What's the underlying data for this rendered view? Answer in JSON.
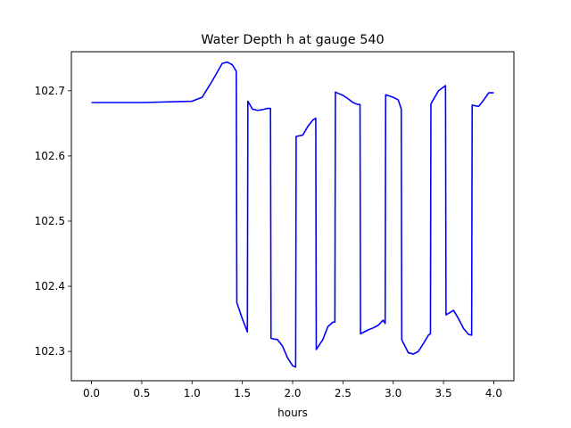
{
  "chart_data": {
    "type": "line",
    "title": "Water Depth h at gauge 540",
    "xlabel": "hours",
    "ylabel": "",
    "xlim": [
      -0.2,
      4.2
    ],
    "ylim": [
      102.255,
      102.76
    ],
    "xticks": [
      0.0,
      0.5,
      1.0,
      1.5,
      2.0,
      2.5,
      3.0,
      3.5,
      4.0
    ],
    "xtick_labels": [
      "0.0",
      "0.5",
      "1.0",
      "1.5",
      "2.0",
      "2.5",
      "3.0",
      "3.5",
      "4.0"
    ],
    "yticks": [
      102.3,
      102.4,
      102.5,
      102.6,
      102.7
    ],
    "ytick_labels": [
      "102.3",
      "102.4",
      "102.5",
      "102.6",
      "102.7"
    ],
    "grid": false,
    "series": [
      {
        "color": "#0000ff",
        "x": [
          0.0,
          0.5,
          1.0,
          1.1,
          1.2,
          1.3,
          1.35,
          1.4,
          1.44,
          1.445,
          1.5,
          1.55,
          1.555,
          1.6,
          1.65,
          1.7,
          1.75,
          1.78,
          1.785,
          1.85,
          1.9,
          1.95,
          2.0,
          2.03,
          2.035,
          2.1,
          2.15,
          2.2,
          2.23,
          2.235,
          2.3,
          2.35,
          2.4,
          2.42,
          2.425,
          2.5,
          2.55,
          2.6,
          2.65,
          2.67,
          2.675,
          2.75,
          2.8,
          2.85,
          2.9,
          2.92,
          2.925,
          3.0,
          3.05,
          3.08,
          3.085,
          3.15,
          3.2,
          3.25,
          3.3,
          3.35,
          3.37,
          3.375,
          3.45,
          3.52,
          3.525,
          3.6,
          3.65,
          3.7,
          3.75,
          3.78,
          3.785,
          3.85,
          3.9,
          3.95,
          4.0
        ],
        "y": [
          102.682,
          102.682,
          102.684,
          102.69,
          102.715,
          102.742,
          102.744,
          102.74,
          102.73,
          102.375,
          102.35,
          102.33,
          102.684,
          102.672,
          102.67,
          102.671,
          102.673,
          102.673,
          102.32,
          102.318,
          102.308,
          102.29,
          102.278,
          102.276,
          102.63,
          102.632,
          102.645,
          102.655,
          102.658,
          102.303,
          102.318,
          102.338,
          102.345,
          102.345,
          102.698,
          102.693,
          102.688,
          102.682,
          102.679,
          102.679,
          102.327,
          102.333,
          102.336,
          102.34,
          102.348,
          102.343,
          102.694,
          102.69,
          102.686,
          102.672,
          102.318,
          102.298,
          102.296,
          102.3,
          102.312,
          102.325,
          102.327,
          102.68,
          102.7,
          102.708,
          102.356,
          102.363,
          102.35,
          102.335,
          102.326,
          102.325,
          102.678,
          102.676,
          102.686,
          102.697,
          102.697
        ]
      }
    ]
  }
}
